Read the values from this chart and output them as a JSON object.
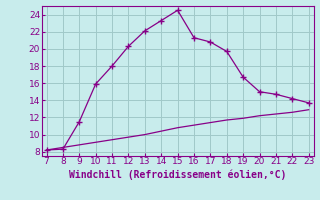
{
  "xlabel": "Windchill (Refroidissement éolien,°C)",
  "line1_x": [
    7,
    8,
    9,
    10,
    11,
    12,
    13,
    14,
    15,
    16,
    17,
    18,
    19,
    20,
    21,
    22,
    23
  ],
  "line1_y": [
    8.2,
    8.3,
    11.5,
    15.9,
    18.0,
    20.3,
    22.1,
    23.3,
    24.5,
    21.3,
    20.8,
    19.7,
    16.7,
    15.0,
    14.7,
    14.2,
    13.7
  ],
  "line2_x": [
    7,
    8,
    9,
    10,
    11,
    12,
    13,
    14,
    15,
    16,
    17,
    18,
    19,
    20,
    21,
    22,
    23
  ],
  "line2_y": [
    8.2,
    8.5,
    8.8,
    9.1,
    9.4,
    9.7,
    10.0,
    10.4,
    10.8,
    11.1,
    11.4,
    11.7,
    11.9,
    12.2,
    12.4,
    12.6,
    12.9
  ],
  "line_color": "#880088",
  "bg_color": "#c8ecec",
  "grid_color": "#a0c8c8",
  "xlim": [
    6.7,
    23.3
  ],
  "ylim": [
    7.5,
    25.0
  ],
  "yticks": [
    8,
    10,
    12,
    14,
    16,
    18,
    20,
    22,
    24
  ],
  "xticks": [
    7,
    8,
    9,
    10,
    11,
    12,
    13,
    14,
    15,
    16,
    17,
    18,
    19,
    20,
    21,
    22,
    23
  ],
  "xlabel_fontsize": 7,
  "tick_fontsize": 6.5
}
